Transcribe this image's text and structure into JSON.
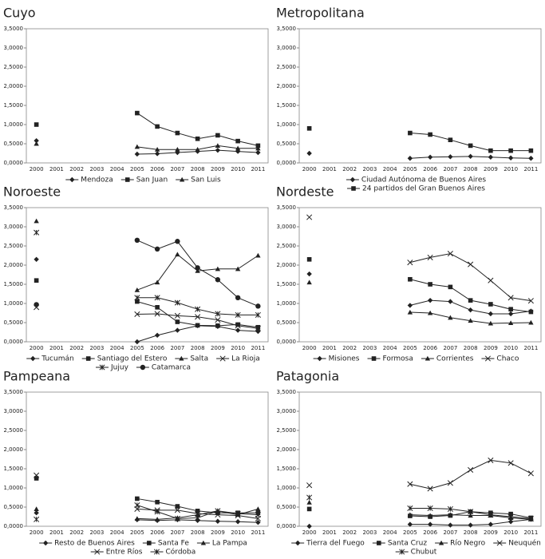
{
  "chart_data": [
    {
      "type": "line",
      "title": "Cuyo",
      "categories": [
        "2000",
        "2001",
        "2002",
        "2003",
        "2004",
        "2005",
        "2006",
        "2007",
        "2008",
        "2009",
        "2010",
        "2011"
      ],
      "ylim": [
        0,
        3.5
      ],
      "yticks": [
        {
          "value": 0,
          "label": "0,0000"
        },
        {
          "value": 0.5,
          "label": "0,5000"
        },
        {
          "value": 1,
          "label": "1,0000"
        },
        {
          "value": 1.5,
          "label": "1,5000"
        },
        {
          "value": 2,
          "label": "2,0000"
        },
        {
          "value": 2.5,
          "label": "2,5000"
        },
        {
          "value": 3,
          "label": "3,0000"
        },
        {
          "value": 3.5,
          "label": "3,5000"
        }
      ],
      "series": [
        {
          "name": "Mendoza",
          "color": "#222222",
          "marker": "diamond",
          "values": [
            0.58,
            null,
            null,
            null,
            null,
            0.23,
            0.24,
            0.27,
            0.3,
            0.33,
            0.3,
            0.27
          ]
        },
        {
          "name": "San Juan",
          "color": "#222222",
          "marker": "square",
          "values": [
            1.0,
            null,
            null,
            null,
            null,
            1.3,
            0.95,
            0.78,
            0.63,
            0.72,
            0.57,
            0.45
          ]
        },
        {
          "name": "San Luis",
          "color": "#222222",
          "marker": "triangle",
          "values": [
            0.5,
            null,
            null,
            null,
            null,
            0.42,
            0.35,
            0.35,
            0.35,
            0.45,
            0.38,
            0.38
          ]
        }
      ]
    },
    {
      "type": "line",
      "title": "Metropolitana",
      "categories": [
        "2000",
        "2001",
        "2002",
        "2003",
        "2004",
        "2005",
        "2006",
        "2007",
        "2008",
        "2009",
        "2010",
        "2011"
      ],
      "ylim": [
        0,
        3.5
      ],
      "yticks": [
        {
          "value": 0,
          "label": "0,0000"
        },
        {
          "value": 0.5,
          "label": "0,5000"
        },
        {
          "value": 1,
          "label": "1,0000"
        },
        {
          "value": 1.5,
          "label": "1,5000"
        },
        {
          "value": 2,
          "label": "2,0000"
        },
        {
          "value": 2.5,
          "label": "2,5000"
        },
        {
          "value": 3,
          "label": "3,0000"
        },
        {
          "value": 3.5,
          "label": "3,5000"
        }
      ],
      "series": [
        {
          "name": "Ciudad Autónoma de Buenos Aires",
          "color": "#222222",
          "marker": "diamond",
          "values": [
            0.25,
            null,
            null,
            null,
            null,
            0.12,
            0.15,
            0.16,
            0.17,
            0.15,
            0.13,
            0.12
          ]
        },
        {
          "name": "24 partidos del Gran Buenos Aires",
          "color": "#222222",
          "marker": "square",
          "values": [
            0.9,
            null,
            null,
            null,
            null,
            0.78,
            0.74,
            0.6,
            0.45,
            0.32,
            0.32,
            0.32
          ]
        }
      ]
    },
    {
      "type": "line",
      "title": "Noroeste",
      "categories": [
        "2000",
        "2001",
        "2002",
        "2003",
        "2004",
        "2005",
        "2006",
        "2007",
        "2008",
        "2009",
        "2010",
        "2011"
      ],
      "ylim": [
        0,
        3.5
      ],
      "yticks": [
        {
          "value": 0,
          "label": "0,0000"
        },
        {
          "value": 0.5,
          "label": "0,5000"
        },
        {
          "value": 1,
          "label": "1,0000"
        },
        {
          "value": 1.5,
          "label": "1,5000"
        },
        {
          "value": 2,
          "label": "2,0000"
        },
        {
          "value": 2.5,
          "label": "2,5000"
        },
        {
          "value": 3,
          "label": "3,0000"
        },
        {
          "value": 3.5,
          "label": "3,5000"
        }
      ],
      "series": [
        {
          "name": "Tucumán",
          "color": "#222222",
          "marker": "diamond",
          "values": [
            2.15,
            null,
            null,
            null,
            null,
            0.0,
            0.17,
            0.3,
            0.42,
            0.4,
            0.3,
            0.27
          ]
        },
        {
          "name": "Santiago del Estero",
          "color": "#222222",
          "marker": "square",
          "values": [
            1.6,
            null,
            null,
            null,
            null,
            1.05,
            0.9,
            0.52,
            0.43,
            0.42,
            0.45,
            0.38
          ]
        },
        {
          "name": "Salta",
          "color": "#222222",
          "marker": "triangle",
          "values": [
            3.15,
            null,
            null,
            null,
            null,
            1.35,
            1.55,
            2.28,
            1.85,
            1.9,
            1.9,
            2.25
          ]
        },
        {
          "name": "La Rioja",
          "color": "#222222",
          "marker": "x",
          "values": [
            0.9,
            null,
            null,
            null,
            null,
            0.72,
            0.73,
            0.68,
            0.65,
            0.57,
            0.42,
            0.35
          ]
        },
        {
          "name": "Jujuy",
          "color": "#222222",
          "marker": "asterisk",
          "values": [
            2.85,
            null,
            null,
            null,
            null,
            1.15,
            1.15,
            1.02,
            0.85,
            0.73,
            0.7,
            0.7
          ]
        },
        {
          "name": "Catamarca",
          "color": "#222222",
          "marker": "circle",
          "values": [
            0.97,
            null,
            null,
            null,
            null,
            2.65,
            2.42,
            2.62,
            1.93,
            1.62,
            1.15,
            0.93
          ]
        }
      ]
    },
    {
      "type": "line",
      "title": "Nordeste",
      "categories": [
        "2000",
        "2001",
        "2002",
        "2003",
        "2004",
        "2005",
        "2006",
        "2007",
        "2008",
        "2009",
        "2010",
        "2011"
      ],
      "ylim": [
        0,
        3.5
      ],
      "yticks": [
        {
          "value": 0,
          "label": "0,0000"
        },
        {
          "value": 0.5,
          "label": "0,5000"
        },
        {
          "value": 1,
          "label": "1,0000"
        },
        {
          "value": 1.5,
          "label": "1,5000"
        },
        {
          "value": 2,
          "label": "2,0000"
        },
        {
          "value": 2.5,
          "label": "2,5000"
        },
        {
          "value": 3,
          "label": "3,0000"
        },
        {
          "value": 3.5,
          "label": "3,5000"
        }
      ],
      "series": [
        {
          "name": "Misiones",
          "color": "#222222",
          "marker": "diamond",
          "values": [
            1.77,
            null,
            null,
            null,
            null,
            0.95,
            1.08,
            1.05,
            0.83,
            0.73,
            0.73,
            0.8
          ]
        },
        {
          "name": "Formosa",
          "color": "#222222",
          "marker": "square",
          "values": [
            2.15,
            null,
            null,
            null,
            null,
            1.63,
            1.5,
            1.43,
            1.08,
            0.98,
            0.85,
            0.78
          ]
        },
        {
          "name": "Corrientes",
          "color": "#222222",
          "marker": "triangle",
          "values": [
            1.55,
            null,
            null,
            null,
            null,
            0.77,
            0.75,
            0.63,
            0.55,
            0.48,
            0.49,
            0.5
          ]
        },
        {
          "name": "Chaco",
          "color": "#222222",
          "marker": "x",
          "values": [
            3.25,
            null,
            null,
            null,
            null,
            2.07,
            2.2,
            2.3,
            2.02,
            1.6,
            1.15,
            1.07
          ]
        }
      ]
    },
    {
      "type": "line",
      "title": "Pampeana",
      "categories": [
        "2000",
        "2001",
        "2002",
        "2003",
        "2004",
        "2005",
        "2006",
        "2007",
        "2008",
        "2009",
        "2010",
        "2011"
      ],
      "ylim": [
        0,
        3.5
      ],
      "yticks": [
        {
          "value": 0,
          "label": "0,0000"
        },
        {
          "value": 0.5,
          "label": "0,5000"
        },
        {
          "value": 1,
          "label": "1,0000"
        },
        {
          "value": 1.5,
          "label": "1,5000"
        },
        {
          "value": 2,
          "label": "2,0000"
        },
        {
          "value": 2.5,
          "label": "2,5000"
        },
        {
          "value": 3,
          "label": "3,0000"
        },
        {
          "value": 3.5,
          "label": "3,5000"
        }
      ],
      "series": [
        {
          "name": "Resto de Buenos Aires",
          "color": "#222222",
          "marker": "diamond",
          "values": [
            0.35,
            null,
            null,
            null,
            null,
            0.17,
            0.15,
            0.17,
            0.15,
            0.13,
            0.12,
            0.1
          ]
        },
        {
          "name": "Santa Fe",
          "color": "#222222",
          "marker": "square",
          "values": [
            1.25,
            null,
            null,
            null,
            null,
            0.72,
            0.63,
            0.52,
            0.4,
            0.35,
            0.35,
            0.35
          ]
        },
        {
          "name": "La Pampa",
          "color": "#222222",
          "marker": "triangle",
          "values": [
            0.45,
            null,
            null,
            null,
            null,
            0.2,
            0.18,
            0.22,
            0.3,
            0.4,
            0.3,
            0.45
          ]
        },
        {
          "name": "Entre Ríos",
          "color": "#222222",
          "marker": "x",
          "values": [
            1.33,
            null,
            null,
            null,
            null,
            0.45,
            0.42,
            0.42,
            0.33,
            0.3,
            0.28,
            0.2
          ]
        },
        {
          "name": "Córdoba",
          "color": "#222222",
          "marker": "asterisk",
          "values": [
            0.18,
            null,
            null,
            null,
            null,
            0.55,
            0.38,
            0.2,
            0.22,
            0.4,
            0.33,
            0.3
          ]
        }
      ]
    },
    {
      "type": "line",
      "title": "Patagonia",
      "categories": [
        "2000",
        "2001",
        "2002",
        "2003",
        "2004",
        "2005",
        "2006",
        "2007",
        "2008",
        "2009",
        "2010",
        "2011"
      ],
      "ylim": [
        0,
        3.5
      ],
      "yticks": [
        {
          "value": 0,
          "label": "0,0000"
        },
        {
          "value": 0.5,
          "label": "0,5000"
        },
        {
          "value": 1,
          "label": "1,0000"
        },
        {
          "value": 1.5,
          "label": "1,5000"
        },
        {
          "value": 2,
          "label": "2,0000"
        },
        {
          "value": 2.5,
          "label": "2,5000"
        },
        {
          "value": 3,
          "label": "3,0000"
        },
        {
          "value": 3.5,
          "label": "3,5000"
        }
      ],
      "series": [
        {
          "name": "Tierra del Fuego",
          "color": "#222222",
          "marker": "diamond",
          "values": [
            0.0,
            null,
            null,
            null,
            null,
            0.05,
            0.05,
            0.03,
            0.03,
            0.05,
            0.12,
            0.18
          ]
        },
        {
          "name": "Santa Cruz",
          "color": "#222222",
          "marker": "square",
          "values": [
            0.45,
            null,
            null,
            null,
            null,
            0.27,
            0.25,
            0.28,
            0.38,
            0.35,
            0.32,
            0.22
          ]
        },
        {
          "name": "Río Negro",
          "color": "#222222",
          "marker": "triangle",
          "values": [
            0.62,
            null,
            null,
            null,
            null,
            0.3,
            0.28,
            0.3,
            0.28,
            0.28,
            0.22,
            0.18
          ]
        },
        {
          "name": "Neuquén",
          "color": "#222222",
          "marker": "x",
          "values": [
            1.07,
            null,
            null,
            null,
            null,
            1.1,
            0.98,
            1.13,
            1.47,
            1.72,
            1.65,
            1.38
          ]
        },
        {
          "name": "Chubut",
          "color": "#222222",
          "marker": "asterisk",
          "values": [
            0.75,
            null,
            null,
            null,
            null,
            0.47,
            0.47,
            0.45,
            0.38,
            0.3,
            0.25,
            0.2
          ]
        }
      ]
    }
  ]
}
